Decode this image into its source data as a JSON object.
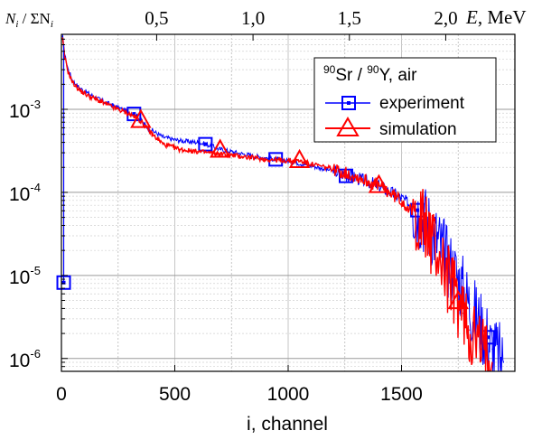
{
  "chart_data": {
    "type": "line",
    "xlabel": "i, channel",
    "ylabel": {
      "main": "N",
      "sub": "i",
      "sep": " / ΣN",
      "sub2": "i"
    },
    "top_axis_label": {
      "var": "E",
      "unit": ", MeV"
    },
    "xlim": [
      0,
      2000
    ],
    "ylim": [
      7e-07,
      0.008
    ],
    "yscale": "log",
    "x_ticks": [
      "0",
      "500",
      "1000",
      "1500"
    ],
    "y_ticks": [
      {
        "base": "10",
        "exp": "-3",
        "value": 0.001
      },
      {
        "base": "10",
        "exp": "-4",
        "value": 0.0001
      },
      {
        "base": "10",
        "exp": "-5",
        "value": 1e-05
      },
      {
        "base": "10",
        "exp": "-6",
        "value": 1e-06
      }
    ],
    "top_ticks": [
      {
        "label": "0,5",
        "channel": 420
      },
      {
        "label": "1,0",
        "channel": 845
      },
      {
        "label": "1,5",
        "channel": 1270
      },
      {
        "label": "2,0",
        "channel": 1695
      }
    ],
    "grid": true,
    "legend": {
      "title": {
        "pre": "90",
        "a": "Sr / ",
        "pre2": "90",
        "b": "Y, air"
      },
      "position": "top-right",
      "entries": [
        {
          "name": "experiment",
          "color": "#0000ff",
          "marker": "square"
        },
        {
          "name": "simulation",
          "color": "#ff0000",
          "marker": "triangle"
        }
      ]
    },
    "series": [
      {
        "name": "experiment",
        "color": "#0000ff",
        "x": [
          5,
          15,
          30,
          50,
          80,
          120,
          170,
          230,
          290,
          330,
          380,
          450,
          520,
          600,
          640,
          700,
          800,
          900,
          950,
          1000,
          1100,
          1200,
          1260,
          1300,
          1400,
          1500,
          1570,
          1600,
          1650,
          1700,
          1750,
          1800,
          1850,
          1880,
          1900,
          1950
        ],
        "y": [
          0.0075,
          0.0045,
          0.003,
          0.0022,
          0.0018,
          0.00155,
          0.0013,
          0.0011,
          0.00095,
          0.00085,
          0.0006,
          0.00046,
          0.00042,
          0.0004,
          0.00038,
          0.00033,
          0.00029,
          0.00026,
          0.00025,
          0.00024,
          0.00021,
          0.00018,
          0.00016,
          0.00015,
          0.00012,
          8.5e-05,
          6e-05,
          5e-05,
          3e-05,
          1.6e-05,
          9e-06,
          4.5e-06,
          2.5e-06,
          1.8e-06,
          1.3e-06,
          9e-07
        ],
        "markers": [
          {
            "x": 10,
            "y": 8.2e-06
          },
          {
            "x": 320,
            "y": 0.00088
          },
          {
            "x": 635,
            "y": 0.00038
          },
          {
            "x": 945,
            "y": 0.00025
          },
          {
            "x": 1255,
            "y": 0.000158
          },
          {
            "x": 1570,
            "y": 6.1e-05
          },
          {
            "x": 1880,
            "y": 1.8e-06
          }
        ]
      },
      {
        "name": "simulation",
        "color": "#ff0000",
        "x": [
          5,
          15,
          30,
          50,
          80,
          120,
          170,
          230,
          290,
          330,
          350,
          400,
          450,
          520,
          600,
          700,
          800,
          900,
          1000,
          1050,
          1100,
          1200,
          1300,
          1400,
          1500,
          1600,
          1650,
          1700,
          1740,
          1770,
          1800,
          1850,
          1880,
          1900
        ],
        "y": [
          0.007,
          0.0042,
          0.0028,
          0.0021,
          0.0017,
          0.00145,
          0.00125,
          0.00105,
          0.0009,
          0.0008,
          0.00072,
          0.0005,
          0.00038,
          0.00033,
          0.00031,
          0.00029,
          0.00027,
          0.00025,
          0.00024,
          0.00024,
          0.00022,
          0.00019,
          0.000155,
          0.00012,
          8e-05,
          4e-05,
          2.2e-05,
          1e-05,
          5.5e-06,
          3.5e-06,
          2.2e-06,
          1.3e-06,
          1e-06,
          9e-07
        ],
        "markers": [
          {
            "x": 350,
            "y": 0.00073
          },
          {
            "x": 700,
            "y": 0.00032
          },
          {
            "x": 1050,
            "y": 0.00024
          },
          {
            "x": 1400,
            "y": 0.00012
          },
          {
            "x": 1750,
            "y": 4.8e-06
          }
        ]
      }
    ]
  }
}
